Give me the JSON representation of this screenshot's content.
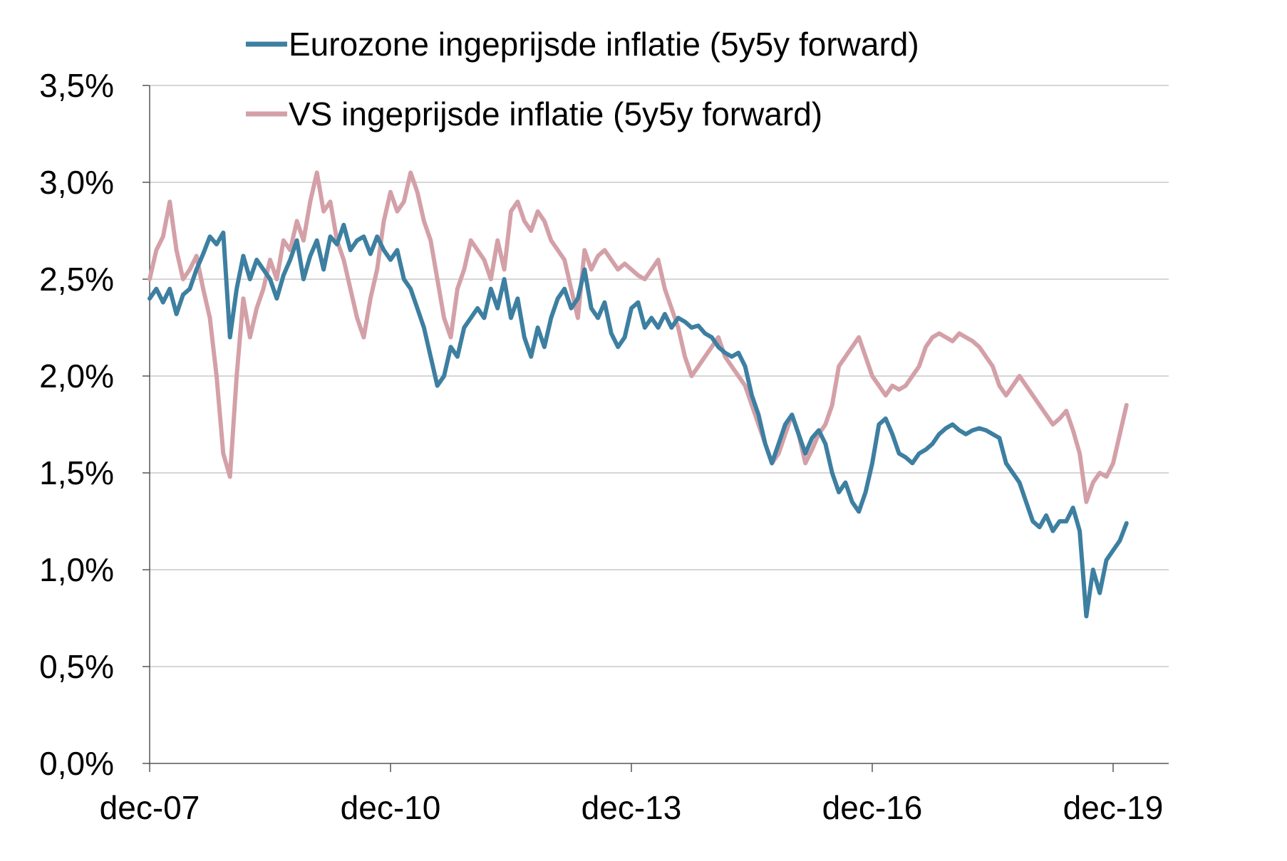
{
  "chart_data": {
    "type": "line",
    "title": "",
    "xlabel": "",
    "ylabel": "",
    "ylim": [
      0.0,
      3.5
    ],
    "y_ticks": [
      "0,0%",
      "0,5%",
      "1,0%",
      "1,5%",
      "2,0%",
      "2,5%",
      "3,0%",
      "3,5%"
    ],
    "x_ticks": [
      "dec-07",
      "dec-10",
      "dec-13",
      "dec-16",
      "dec-19"
    ],
    "grid": "horizontal",
    "legend_position": "top",
    "series": [
      {
        "name": "Eurozone ingeprijsde inflatie (5y5y forward)",
        "color": "#3d7fa1",
        "points": [
          [
            "2007-12",
            2.4
          ],
          [
            "2008-01",
            2.45
          ],
          [
            "2008-02",
            2.38
          ],
          [
            "2008-03",
            2.45
          ],
          [
            "2008-04",
            2.32
          ],
          [
            "2008-05",
            2.42
          ],
          [
            "2008-06",
            2.45
          ],
          [
            "2008-07",
            2.55
          ],
          [
            "2008-08",
            2.63
          ],
          [
            "2008-09",
            2.72
          ],
          [
            "2008-10",
            2.68
          ],
          [
            "2008-11",
            2.74
          ],
          [
            "2008-12",
            2.2
          ],
          [
            "2009-01",
            2.45
          ],
          [
            "2009-02",
            2.62
          ],
          [
            "2009-03",
            2.5
          ],
          [
            "2009-04",
            2.6
          ],
          [
            "2009-05",
            2.55
          ],
          [
            "2009-06",
            2.5
          ],
          [
            "2009-07",
            2.4
          ],
          [
            "2009-08",
            2.52
          ],
          [
            "2009-09",
            2.6
          ],
          [
            "2009-10",
            2.7
          ],
          [
            "2009-11",
            2.5
          ],
          [
            "2009-12",
            2.62
          ],
          [
            "2010-01",
            2.7
          ],
          [
            "2010-02",
            2.55
          ],
          [
            "2010-03",
            2.72
          ],
          [
            "2010-04",
            2.68
          ],
          [
            "2010-05",
            2.78
          ],
          [
            "2010-06",
            2.65
          ],
          [
            "2010-07",
            2.7
          ],
          [
            "2010-08",
            2.72
          ],
          [
            "2010-09",
            2.63
          ],
          [
            "2010-10",
            2.72
          ],
          [
            "2010-11",
            2.65
          ],
          [
            "2010-12",
            2.6
          ],
          [
            "2011-01",
            2.65
          ],
          [
            "2011-02",
            2.5
          ],
          [
            "2011-03",
            2.45
          ],
          [
            "2011-04",
            2.35
          ],
          [
            "2011-05",
            2.25
          ],
          [
            "2011-06",
            2.1
          ],
          [
            "2011-07",
            1.95
          ],
          [
            "2011-08",
            2.0
          ],
          [
            "2011-09",
            2.15
          ],
          [
            "2011-10",
            2.1
          ],
          [
            "2011-11",
            2.25
          ],
          [
            "2011-12",
            2.3
          ],
          [
            "2012-01",
            2.35
          ],
          [
            "2012-02",
            2.3
          ],
          [
            "2012-03",
            2.45
          ],
          [
            "2012-04",
            2.35
          ],
          [
            "2012-05",
            2.5
          ],
          [
            "2012-06",
            2.3
          ],
          [
            "2012-07",
            2.4
          ],
          [
            "2012-08",
            2.2
          ],
          [
            "2012-09",
            2.1
          ],
          [
            "2012-10",
            2.25
          ],
          [
            "2012-11",
            2.15
          ],
          [
            "2012-12",
            2.3
          ],
          [
            "2013-01",
            2.4
          ],
          [
            "2013-02",
            2.45
          ],
          [
            "2013-03",
            2.35
          ],
          [
            "2013-04",
            2.4
          ],
          [
            "2013-05",
            2.55
          ],
          [
            "2013-06",
            2.35
          ],
          [
            "2013-07",
            2.3
          ],
          [
            "2013-08",
            2.38
          ],
          [
            "2013-09",
            2.22
          ],
          [
            "2013-10",
            2.15
          ],
          [
            "2013-11",
            2.2
          ],
          [
            "2013-12",
            2.35
          ],
          [
            "2014-01",
            2.38
          ],
          [
            "2014-02",
            2.25
          ],
          [
            "2014-03",
            2.3
          ],
          [
            "2014-04",
            2.25
          ],
          [
            "2014-05",
            2.32
          ],
          [
            "2014-06",
            2.25
          ],
          [
            "2014-07",
            2.3
          ],
          [
            "2014-08",
            2.28
          ],
          [
            "2014-09",
            2.25
          ],
          [
            "2014-10",
            2.26
          ],
          [
            "2014-11",
            2.22
          ],
          [
            "2014-12",
            2.2
          ],
          [
            "2015-01",
            2.15
          ],
          [
            "2015-02",
            2.12
          ],
          [
            "2015-03",
            2.1
          ],
          [
            "2015-04",
            2.12
          ],
          [
            "2015-05",
            2.05
          ],
          [
            "2015-06",
            1.9
          ],
          [
            "2015-07",
            1.8
          ],
          [
            "2015-08",
            1.65
          ],
          [
            "2015-09",
            1.55
          ],
          [
            "2015-10",
            1.65
          ],
          [
            "2015-11",
            1.75
          ],
          [
            "2015-12",
            1.8
          ],
          [
            "2016-01",
            1.7
          ],
          [
            "2016-02",
            1.6
          ],
          [
            "2016-03",
            1.68
          ],
          [
            "2016-04",
            1.72
          ],
          [
            "2016-05",
            1.65
          ],
          [
            "2016-06",
            1.5
          ],
          [
            "2016-07",
            1.4
          ],
          [
            "2016-08",
            1.45
          ],
          [
            "2016-09",
            1.35
          ],
          [
            "2016-10",
            1.3
          ],
          [
            "2016-11",
            1.4
          ],
          [
            "2016-12",
            1.55
          ],
          [
            "2017-01",
            1.75
          ],
          [
            "2017-02",
            1.78
          ],
          [
            "2017-03",
            1.7
          ],
          [
            "2017-04",
            1.6
          ],
          [
            "2017-05",
            1.58
          ],
          [
            "2017-06",
            1.55
          ],
          [
            "2017-07",
            1.6
          ],
          [
            "2017-08",
            1.62
          ],
          [
            "2017-09",
            1.65
          ],
          [
            "2017-10",
            1.7
          ],
          [
            "2017-11",
            1.73
          ],
          [
            "2017-12",
            1.75
          ],
          [
            "2018-01",
            1.72
          ],
          [
            "2018-02",
            1.7
          ],
          [
            "2018-03",
            1.72
          ],
          [
            "2018-04",
            1.73
          ],
          [
            "2018-05",
            1.72
          ],
          [
            "2018-06",
            1.7
          ],
          [
            "2018-07",
            1.68
          ],
          [
            "2018-08",
            1.55
          ],
          [
            "2018-09",
            1.5
          ],
          [
            "2018-10",
            1.45
          ],
          [
            "2018-11",
            1.35
          ],
          [
            "2018-12",
            1.25
          ],
          [
            "2019-01",
            1.22
          ],
          [
            "2019-02",
            1.28
          ],
          [
            "2019-03",
            1.2
          ],
          [
            "2019-04",
            1.25
          ],
          [
            "2019-05",
            1.25
          ],
          [
            "2019-06",
            1.32
          ],
          [
            "2019-07",
            1.2
          ],
          [
            "2019-08",
            0.76
          ],
          [
            "2019-09",
            1.0
          ],
          [
            "2019-10",
            0.88
          ],
          [
            "2019-11",
            1.05
          ],
          [
            "2019-12",
            1.1
          ],
          [
            "2020-01",
            1.15
          ],
          [
            "2020-02",
            1.24
          ]
        ]
      },
      {
        "name": "VS ingeprijsde inflatie (5y5y forward)",
        "color": "#d4a0a8",
        "points": [
          [
            "2007-12",
            2.5
          ],
          [
            "2008-01",
            2.65
          ],
          [
            "2008-02",
            2.72
          ],
          [
            "2008-03",
            2.9
          ],
          [
            "2008-04",
            2.65
          ],
          [
            "2008-05",
            2.5
          ],
          [
            "2008-06",
            2.55
          ],
          [
            "2008-07",
            2.62
          ],
          [
            "2008-08",
            2.45
          ],
          [
            "2008-09",
            2.3
          ],
          [
            "2008-10",
            2.0
          ],
          [
            "2008-11",
            1.6
          ],
          [
            "2008-12",
            1.48
          ],
          [
            "2009-01",
            2.0
          ],
          [
            "2009-02",
            2.4
          ],
          [
            "2009-03",
            2.2
          ],
          [
            "2009-04",
            2.35
          ],
          [
            "2009-05",
            2.45
          ],
          [
            "2009-06",
            2.6
          ],
          [
            "2009-07",
            2.5
          ],
          [
            "2009-08",
            2.7
          ],
          [
            "2009-09",
            2.65
          ],
          [
            "2009-10",
            2.8
          ],
          [
            "2009-11",
            2.7
          ],
          [
            "2009-12",
            2.9
          ],
          [
            "2010-01",
            3.05
          ],
          [
            "2010-02",
            2.85
          ],
          [
            "2010-03",
            2.9
          ],
          [
            "2010-04",
            2.7
          ],
          [
            "2010-05",
            2.6
          ],
          [
            "2010-06",
            2.45
          ],
          [
            "2010-07",
            2.3
          ],
          [
            "2010-08",
            2.2
          ],
          [
            "2010-09",
            2.4
          ],
          [
            "2010-10",
            2.55
          ],
          [
            "2010-11",
            2.8
          ],
          [
            "2010-12",
            2.95
          ],
          [
            "2011-01",
            2.85
          ],
          [
            "2011-02",
            2.9
          ],
          [
            "2011-03",
            3.05
          ],
          [
            "2011-04",
            2.95
          ],
          [
            "2011-05",
            2.8
          ],
          [
            "2011-06",
            2.7
          ],
          [
            "2011-07",
            2.5
          ],
          [
            "2011-08",
            2.3
          ],
          [
            "2011-09",
            2.2
          ],
          [
            "2011-10",
            2.45
          ],
          [
            "2011-11",
            2.55
          ],
          [
            "2011-12",
            2.7
          ],
          [
            "2012-01",
            2.65
          ],
          [
            "2012-02",
            2.6
          ],
          [
            "2012-03",
            2.5
          ],
          [
            "2012-04",
            2.7
          ],
          [
            "2012-05",
            2.55
          ],
          [
            "2012-06",
            2.85
          ],
          [
            "2012-07",
            2.9
          ],
          [
            "2012-08",
            2.8
          ],
          [
            "2012-09",
            2.75
          ],
          [
            "2012-10",
            2.85
          ],
          [
            "2012-11",
            2.8
          ],
          [
            "2012-12",
            2.7
          ],
          [
            "2013-01",
            2.65
          ],
          [
            "2013-02",
            2.6
          ],
          [
            "2013-03",
            2.45
          ],
          [
            "2013-04",
            2.3
          ],
          [
            "2013-05",
            2.65
          ],
          [
            "2013-06",
            2.55
          ],
          [
            "2013-07",
            2.62
          ],
          [
            "2013-08",
            2.65
          ],
          [
            "2013-09",
            2.6
          ],
          [
            "2013-10",
            2.55
          ],
          [
            "2013-11",
            2.58
          ],
          [
            "2013-12",
            2.55
          ],
          [
            "2014-01",
            2.52
          ],
          [
            "2014-02",
            2.5
          ],
          [
            "2014-03",
            2.55
          ],
          [
            "2014-04",
            2.6
          ],
          [
            "2014-05",
            2.45
          ],
          [
            "2014-06",
            2.35
          ],
          [
            "2014-07",
            2.25
          ],
          [
            "2014-08",
            2.1
          ],
          [
            "2014-09",
            2.0
          ],
          [
            "2014-10",
            2.05
          ],
          [
            "2014-11",
            2.1
          ],
          [
            "2014-12",
            2.15
          ],
          [
            "2015-01",
            2.2
          ],
          [
            "2015-02",
            2.1
          ],
          [
            "2015-03",
            2.05
          ],
          [
            "2015-04",
            2.0
          ],
          [
            "2015-05",
            1.95
          ],
          [
            "2015-06",
            1.85
          ],
          [
            "2015-07",
            1.75
          ],
          [
            "2015-08",
            1.65
          ],
          [
            "2015-09",
            1.55
          ],
          [
            "2015-10",
            1.6
          ],
          [
            "2015-11",
            1.7
          ],
          [
            "2015-12",
            1.8
          ],
          [
            "2016-01",
            1.7
          ],
          [
            "2016-02",
            1.55
          ],
          [
            "2016-03",
            1.62
          ],
          [
            "2016-04",
            1.7
          ],
          [
            "2016-05",
            1.75
          ],
          [
            "2016-06",
            1.85
          ],
          [
            "2016-07",
            2.05
          ],
          [
            "2016-08",
            2.1
          ],
          [
            "2016-09",
            2.15
          ],
          [
            "2016-10",
            2.2
          ],
          [
            "2016-11",
            2.1
          ],
          [
            "2016-12",
            2.0
          ],
          [
            "2017-01",
            1.95
          ],
          [
            "2017-02",
            1.9
          ],
          [
            "2017-03",
            1.95
          ],
          [
            "2017-04",
            1.93
          ],
          [
            "2017-05",
            1.95
          ],
          [
            "2017-06",
            2.0
          ],
          [
            "2017-07",
            2.05
          ],
          [
            "2017-08",
            2.15
          ],
          [
            "2017-09",
            2.2
          ],
          [
            "2017-10",
            2.22
          ],
          [
            "2017-11",
            2.2
          ],
          [
            "2017-12",
            2.18
          ],
          [
            "2018-01",
            2.22
          ],
          [
            "2018-02",
            2.2
          ],
          [
            "2018-03",
            2.18
          ],
          [
            "2018-04",
            2.15
          ],
          [
            "2018-05",
            2.1
          ],
          [
            "2018-06",
            2.05
          ],
          [
            "2018-07",
            1.95
          ],
          [
            "2018-08",
            1.9
          ],
          [
            "2018-09",
            1.95
          ],
          [
            "2018-10",
            2.0
          ],
          [
            "2018-11",
            1.95
          ],
          [
            "2018-12",
            1.9
          ],
          [
            "2019-01",
            1.85
          ],
          [
            "2019-02",
            1.8
          ],
          [
            "2019-03",
            1.75
          ],
          [
            "2019-04",
            1.78
          ],
          [
            "2019-05",
            1.82
          ],
          [
            "2019-06",
            1.72
          ],
          [
            "2019-07",
            1.6
          ],
          [
            "2019-08",
            1.35
          ],
          [
            "2019-09",
            1.45
          ],
          [
            "2019-10",
            1.5
          ],
          [
            "2019-11",
            1.48
          ],
          [
            "2019-12",
            1.55
          ],
          [
            "2020-01",
            1.7
          ],
          [
            "2020-02",
            1.85
          ]
        ]
      }
    ]
  }
}
